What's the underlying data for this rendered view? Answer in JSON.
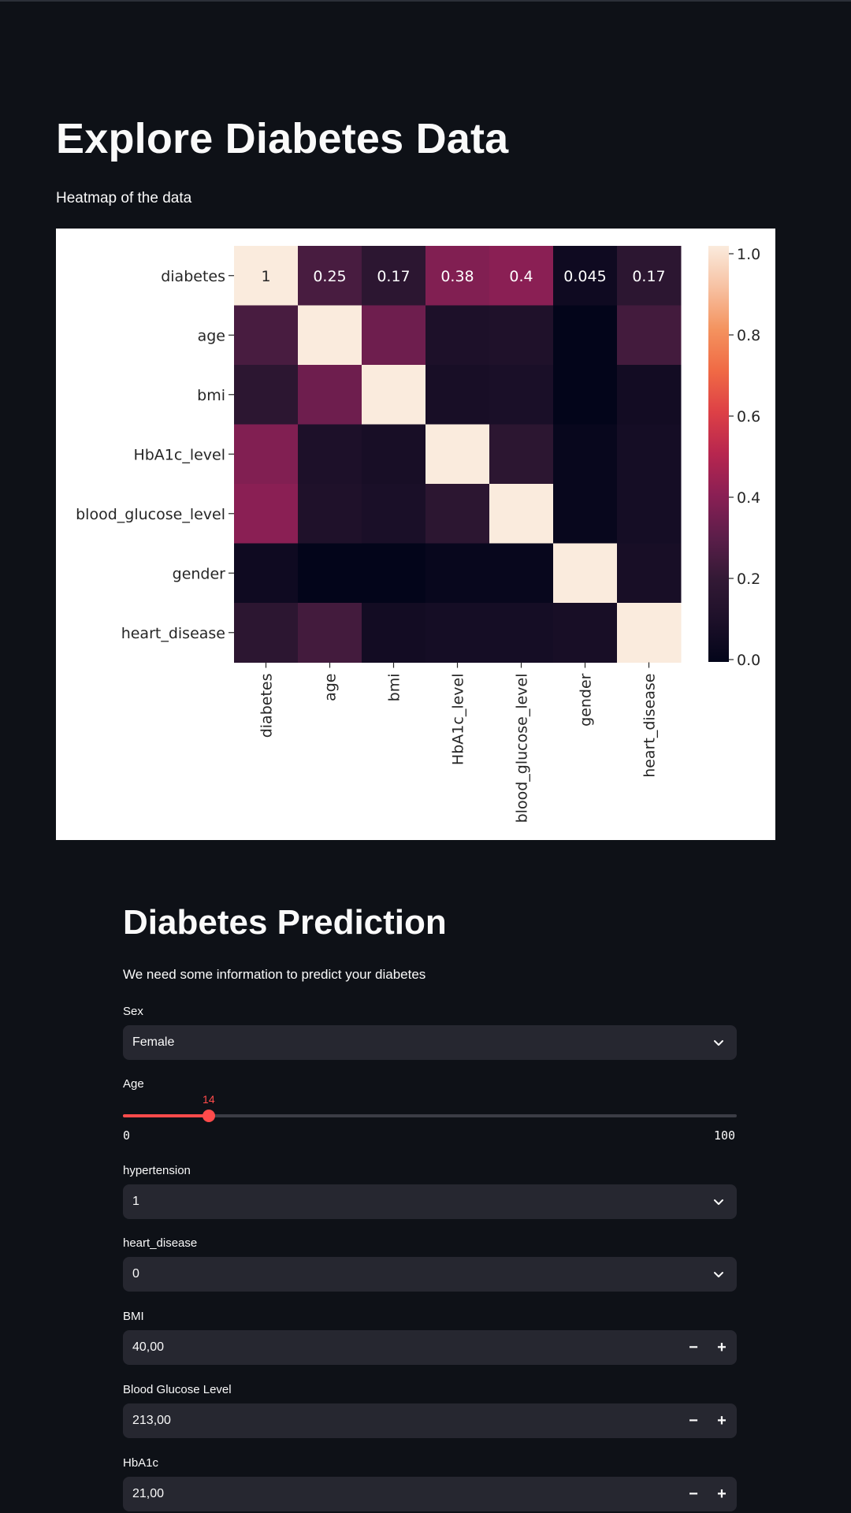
{
  "explore": {
    "title": "Explore Diabetes Data",
    "subtitle": "Heatmap of the data"
  },
  "chart_data": {
    "type": "heatmap",
    "labels": [
      "diabetes",
      "age",
      "bmi",
      "HbA1c_level",
      "blood_glucose_level",
      "gender",
      "heart_disease"
    ],
    "values": [
      [
        1,
        0.25,
        0.17,
        0.38,
        0.4,
        0.045,
        0.17
      ],
      [
        0.25,
        1,
        0.34,
        0.1,
        0.11,
        -0.03,
        0.24
      ],
      [
        0.17,
        0.34,
        1,
        0.08,
        0.09,
        -0.02,
        0.06
      ],
      [
        0.38,
        0.1,
        0.08,
        1,
        0.17,
        0.02,
        0.07
      ],
      [
        0.4,
        0.11,
        0.09,
        0.17,
        1,
        0.02,
        0.07
      ],
      [
        0.045,
        -0.03,
        -0.02,
        0.02,
        0.02,
        1,
        0.08
      ],
      [
        0.17,
        0.24,
        0.06,
        0.07,
        0.07,
        0.08,
        1
      ]
    ],
    "annotated_row": 0,
    "annotations": [
      "1",
      "0.25",
      "0.17",
      "0.38",
      "0.4",
      "0.045",
      "0.17"
    ],
    "colorbar_ticks": [
      "0.0",
      "0.2",
      "0.4",
      "0.6",
      "0.8",
      "1.0"
    ],
    "colorbar_range": [
      0,
      1
    ],
    "colormap": "rocket"
  },
  "prediction": {
    "title": "Diabetes Prediction",
    "subtitle": "We need some information to predict your diabetes",
    "sex": {
      "label": "Sex",
      "value": "Female"
    },
    "age": {
      "label": "Age",
      "value": 14,
      "value_text": "14",
      "min": 0,
      "max": 100,
      "min_text": "0",
      "max_text": "100"
    },
    "hypertension": {
      "label": "hypertension",
      "value": "1"
    },
    "heart_disease": {
      "label": "heart_disease",
      "value": "0"
    },
    "bmi": {
      "label": "BMI",
      "value": "40,00"
    },
    "glucose": {
      "label": "Blood Glucose Level",
      "value": "213,00"
    },
    "hba1c": {
      "label": "HbA1c",
      "value": "21,00"
    },
    "minus_symbol": "−",
    "plus_symbol": "+"
  },
  "colors": {
    "background": "#0e1117",
    "field": "#262730",
    "accent": "#ff4b4b"
  },
  "icons": {
    "select": "chevron-down-icon"
  }
}
